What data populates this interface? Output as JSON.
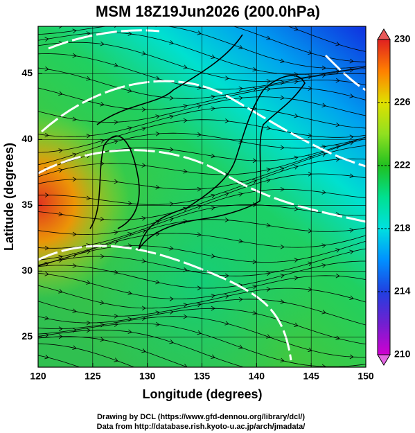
{
  "chart_data": {
    "type": "map",
    "title": "MSM 18Z19Jun2026 (200.0hPa)",
    "xlabel": "Longitude (degrees)",
    "ylabel": "Latitude  (degrees)",
    "xlim": [
      120,
      150
    ],
    "ylim": [
      22.7,
      48.6
    ],
    "xticks": [
      120,
      125,
      130,
      135,
      140,
      145,
      150
    ],
    "yticks": [
      25,
      30,
      35,
      40,
      45
    ],
    "grid": true,
    "colorbar": {
      "lim": [
        210,
        230
      ],
      "ticks": [
        210,
        214,
        218,
        222,
        226,
        230
      ],
      "colors": [
        "#d000d0",
        "#7020d0",
        "#2040e0",
        "#0090ff",
        "#00e0e0",
        "#00e090",
        "#20c020",
        "#90e020",
        "#e0e000",
        "#ff8000",
        "#e02020"
      ]
    },
    "footer": [
      "Drawing by DCL (https://www.gfd-dennou.org/library/dcl/)",
      "Data from http://database.rish.kyoto-u.ac.jp/arch/jmadata/"
    ]
  }
}
